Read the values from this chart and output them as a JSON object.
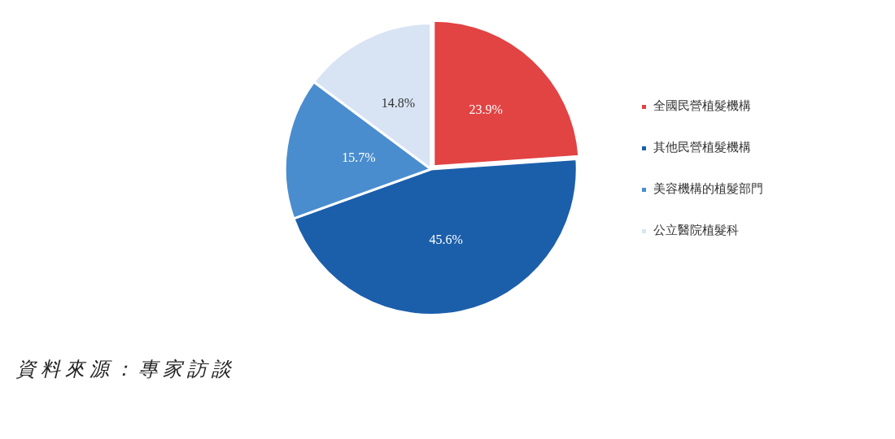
{
  "chart_data": {
    "type": "pie",
    "categories": [
      "全國民營植髮機構",
      "其他民營植髮機構",
      "美容機構的植髮部門",
      "公立醫院植髮科"
    ],
    "values": [
      23.9,
      45.6,
      15.7,
      14.8
    ],
    "colors": [
      "#e24343",
      "#1b5fab",
      "#4a8dcf",
      "#d8e4f4"
    ],
    "value_labels": [
      "23.9%",
      "45.6%",
      "15.7%",
      "14.8%"
    ],
    "legend": "right",
    "annotations": [
      "資料來源：專家訪談"
    ]
  }
}
